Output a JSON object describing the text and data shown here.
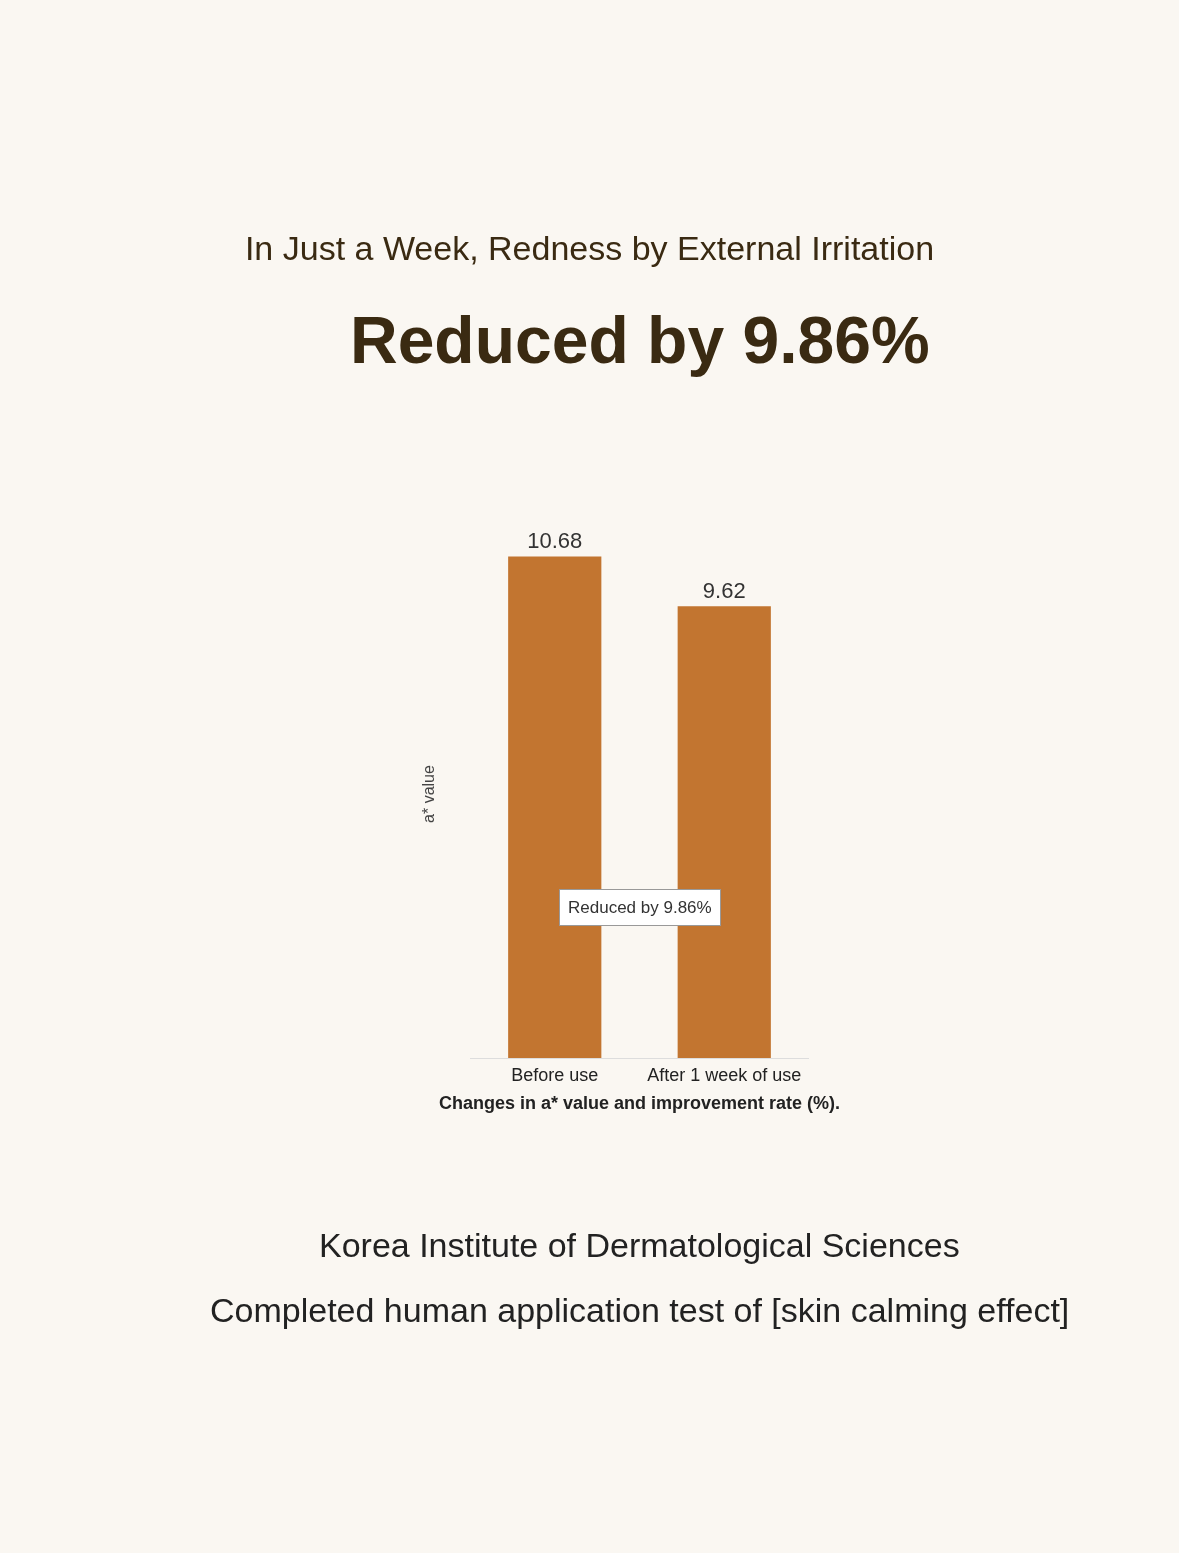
{
  "chart_data": {
    "type": "bar",
    "title": "In Just a Week, Redness by External Irritation",
    "subtitle": "Reduced by 9.86%",
    "ylabel": "a* value",
    "xlabel": "Changes in a* value and improvement rate (%).",
    "categories": [
      "Before use",
      "After 1 week of use"
    ],
    "values": [
      10.68,
      9.62
    ],
    "color": "#c27530",
    "data_labels": true,
    "tick_labels": "x",
    "annotations": [
      "Reduced by 9.86%",
      "Korea Institute of Dermatological Sciences",
      "Completed human application test of [skin calming effect]"
    ]
  }
}
